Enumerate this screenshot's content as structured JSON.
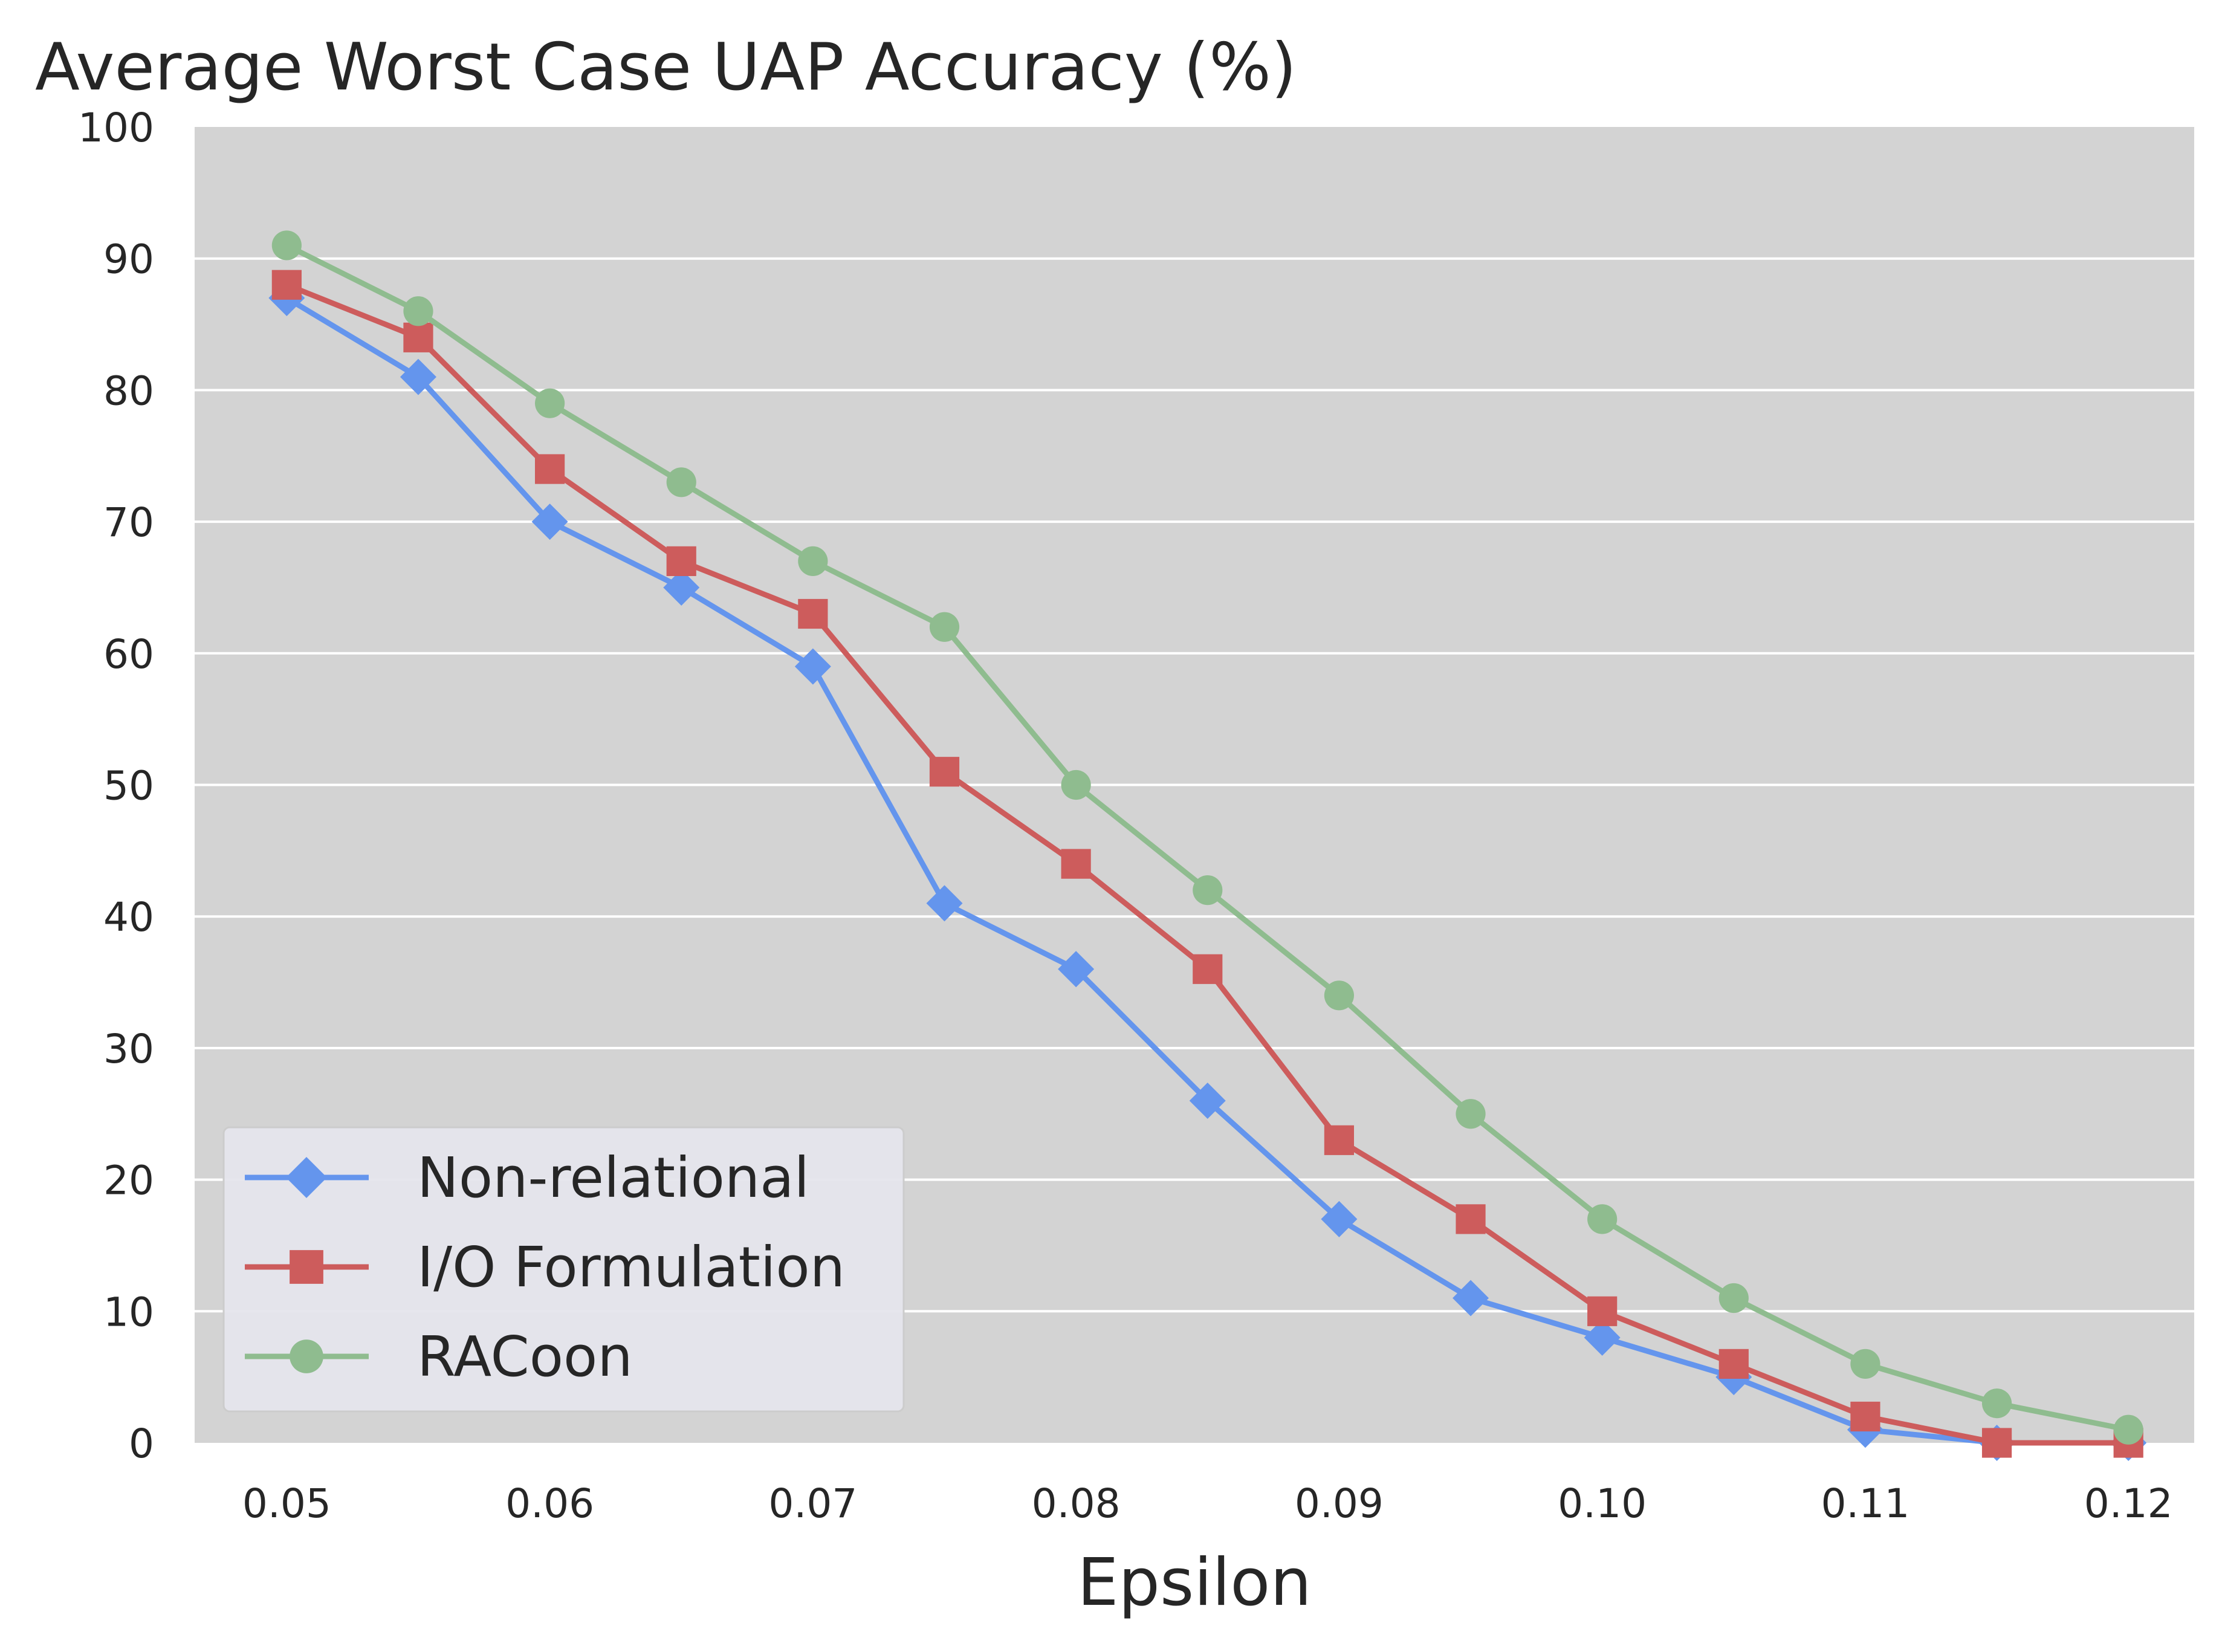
{
  "chart_data": {
    "type": "line",
    "title": "Average Worst Case UAP Accuracy (%)",
    "xlabel": "Epsilon",
    "ylabel": "",
    "xlim": [
      0.0465,
      0.1225
    ],
    "ylim": [
      0,
      100
    ],
    "x": [
      0.05,
      0.055,
      0.06,
      0.065,
      0.07,
      0.075,
      0.08,
      0.085,
      0.09,
      0.095,
      0.1,
      0.105,
      0.11,
      0.115,
      0.12
    ],
    "x_ticks": [
      0.05,
      0.06,
      0.07,
      0.08,
      0.09,
      0.1,
      0.11,
      0.12
    ],
    "x_tick_labels": [
      "0.05",
      "0.06",
      "0.07",
      "0.08",
      "0.09",
      "0.10",
      "0.11",
      "0.12"
    ],
    "y_ticks": [
      0,
      10,
      20,
      30,
      40,
      50,
      60,
      70,
      80,
      90,
      100
    ],
    "y_tick_labels": [
      "0",
      "10",
      "20",
      "30",
      "40",
      "50",
      "60",
      "70",
      "80",
      "90",
      "100"
    ],
    "grid": true,
    "legend_position": "lower-left",
    "background_color": "#d3d3d3",
    "series": [
      {
        "name": "Non-relational",
        "color": "#6495ed",
        "marker": "diamond",
        "values": [
          87,
          81,
          70,
          65,
          59,
          41,
          36,
          26,
          17,
          11,
          8,
          5,
          1,
          0,
          0
        ]
      },
      {
        "name": "I/O Formulation",
        "color": "#cd5c5c",
        "marker": "square",
        "values": [
          88,
          84,
          74,
          67,
          63,
          51,
          44,
          36,
          23,
          17,
          10,
          6,
          2,
          0,
          0
        ]
      },
      {
        "name": "RACoon",
        "color": "#8fbc8f",
        "marker": "circle",
        "values": [
          91,
          86,
          79,
          73,
          67,
          62,
          50,
          42,
          34,
          25,
          17,
          11,
          6,
          3,
          1
        ]
      }
    ]
  }
}
